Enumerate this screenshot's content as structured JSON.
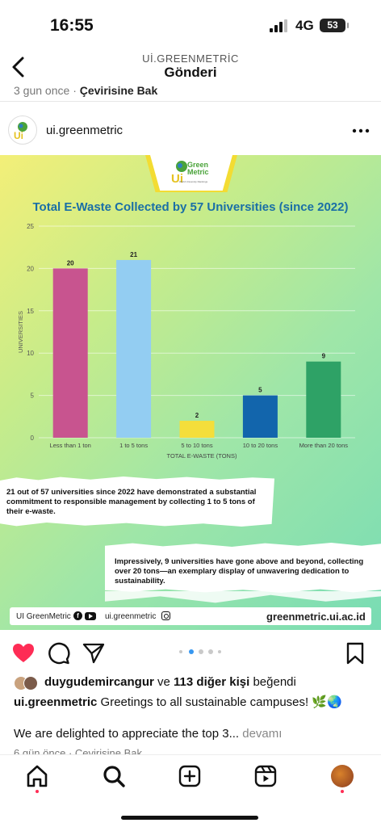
{
  "status_bar": {
    "time": "16:55",
    "network": "4G",
    "battery": "53"
  },
  "header": {
    "subtitle": "Uİ.GREENMETRİC",
    "title": "Gönderi"
  },
  "previous_post": {
    "time_ago": "3 gun once",
    "separator": "·",
    "see_translation": "Çevirisine Bak"
  },
  "post": {
    "username": "ui.greenmetric",
    "logo_text": "Green Metric",
    "logo_tagline": "World University Rankings",
    "image": {
      "note_1": "21 out of 57 universities since 2022 have demonstrated a substantial commitment to responsible management by collecting 1 to 5 tons of their e-waste.",
      "note_2": "Impressively, 9 universities have gone above and beyond, collecting over 20 tons—an exemplary display of unwavering dedication to sustainability.",
      "footer_brand": "UI GreenMetric",
      "footer_handle": "ui.greenmetric",
      "footer_site": "greenmetric.ui.ac.id"
    }
  },
  "chart_data": {
    "type": "bar",
    "title": "Total E-Waste Collected by 57 Universities (since 2022)",
    "categories": [
      "Less than 1 ton",
      "1 to 5 tons",
      "5 to 10 tons",
      "10 to 20 tons",
      "More than 20 tons"
    ],
    "values": [
      20,
      21,
      2,
      5,
      9
    ],
    "data_labels": [
      "20",
      "21",
      "2",
      "5",
      "9"
    ],
    "colors": [
      "#c8548f",
      "#93cdf2",
      "#f4de3b",
      "#1265ac",
      "#2ea266"
    ],
    "xlabel": "TOTAL E-WASTE (TONS)",
    "ylabel": "UNIVERSITIES",
    "ylim": [
      0,
      25
    ],
    "y_ticks": [
      "0",
      "5",
      "10",
      "15",
      "20",
      "25"
    ],
    "grid": true,
    "legend": "none"
  },
  "engagement": {
    "liked_by_user": "duygudemircangur",
    "liked_joiner": "ve",
    "liked_others": "113 diğer kişi",
    "liked_suffix": "beğendi",
    "caption_user": "ui.greenmetric",
    "caption_text": "Greetings to all sustainable campuses! 🌿🌏",
    "caption_more_text": "We are delighted to appreciate the top 3...",
    "more_label": "devamı",
    "next_post_meta": "6 gün önce · Çevirisine Bak"
  },
  "icons": {
    "like": "heart-icon",
    "comment": "comment-icon",
    "share": "send-icon",
    "save": "bookmark-icon",
    "home": "home-icon",
    "search": "search-icon",
    "create": "plus-square-icon",
    "reels": "reels-icon"
  },
  "colors": {
    "like_red": "#fe2c55",
    "notification_dot": "#ff2d55",
    "carousel_active": "#3797f0"
  },
  "carousel": {
    "count": 5,
    "active_index": 1
  }
}
